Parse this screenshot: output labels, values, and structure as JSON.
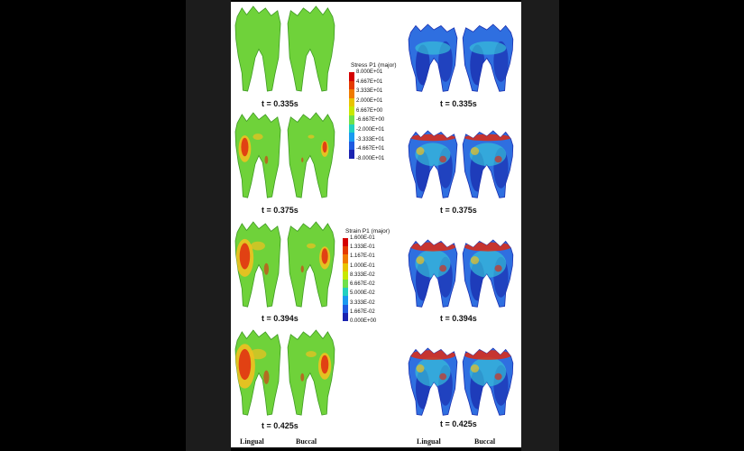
{
  "stress_legend": {
    "title": "Stress P1 (major)",
    "labels": [
      "8.000E+01",
      "4.667E+01",
      "3.333E+01",
      "2.000E+01",
      "6.667E+00",
      "-6.667E+00",
      "-2.000E+01",
      "-3.333E+01",
      "-4.667E+01",
      "-8.000E+01"
    ],
    "colors": [
      "#d40000",
      "#e43a00",
      "#f07a00",
      "#e8c400",
      "#c8e800",
      "#6fe04a",
      "#22d0c0",
      "#1a9af0",
      "#1f5ae0",
      "#1a23b0"
    ]
  },
  "strain_legend": {
    "title": "Strain P1 (major)",
    "labels": [
      "1.600E-01",
      "1.333E-01",
      "1.167E-01",
      "1.000E-01",
      "8.333E-02",
      "6.667E-02",
      "5.000E-02",
      "3.333E-02",
      "1.667E-02",
      "0.000E+00"
    ],
    "colors": [
      "#d40000",
      "#e43a00",
      "#f07a00",
      "#e8c400",
      "#c8e800",
      "#6fe04a",
      "#22d0c0",
      "#1a9af0",
      "#1f5ae0",
      "#1a23b0"
    ]
  },
  "rows": [
    {
      "stress_time": "t = 0.335s",
      "strain_time": "t = 0.335s"
    },
    {
      "stress_time": "t = 0.375s",
      "strain_time": "t = 0.375s"
    },
    {
      "stress_time": "t = 0.394s",
      "strain_time": "t = 0.394s"
    },
    {
      "stress_time": "t = 0.425s",
      "strain_time": "t = 0.425s"
    }
  ],
  "footer": {
    "left_lingual": "Lingual",
    "left_buccal": "Buccal",
    "right_lingual": "Lingual",
    "right_buccal": "Buccal"
  },
  "colors": {
    "stress_base": "#6fd23a",
    "stress_hot": "#e02a10",
    "stress_warm": "#f0c020",
    "strain_base": "#2f6fe0",
    "strain_deep": "#1a2fb0",
    "strain_mid": "#38c6d8",
    "strain_hot": "#e02a10"
  },
  "stress_intensity": [
    0,
    0.6,
    0.85,
    1
  ],
  "strain_intensity": [
    0.15,
    0.55,
    0.75,
    0.8
  ]
}
